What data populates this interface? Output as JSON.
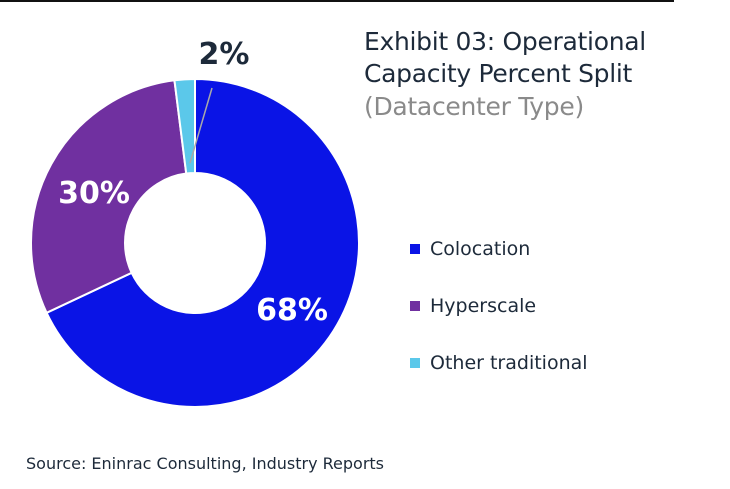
{
  "title": "Exhibit 03: Operational Capacity Percent Split",
  "title_lines": [
    "Exhibit 03: Operational",
    "Capacity Percent Split"
  ],
  "subtitle": "(Datacenter Type)",
  "source": "Source: Eninrac Consulting, Industry Reports",
  "chart_data": {
    "type": "pie",
    "donut": true,
    "title": "Exhibit 03: Operational Capacity Percent Split",
    "subtitle": "(Datacenter Type)",
    "legend_position": "right",
    "slices": [
      {
        "label": "Colocation",
        "value": 68,
        "display": "68%",
        "color": "#0a14e6"
      },
      {
        "label": "Hyperscale",
        "value": 30,
        "display": "30%",
        "color": "#7030a0"
      },
      {
        "label": "Other traditional",
        "value": 2,
        "display": "2%",
        "color": "#5bc8ea"
      }
    ]
  }
}
